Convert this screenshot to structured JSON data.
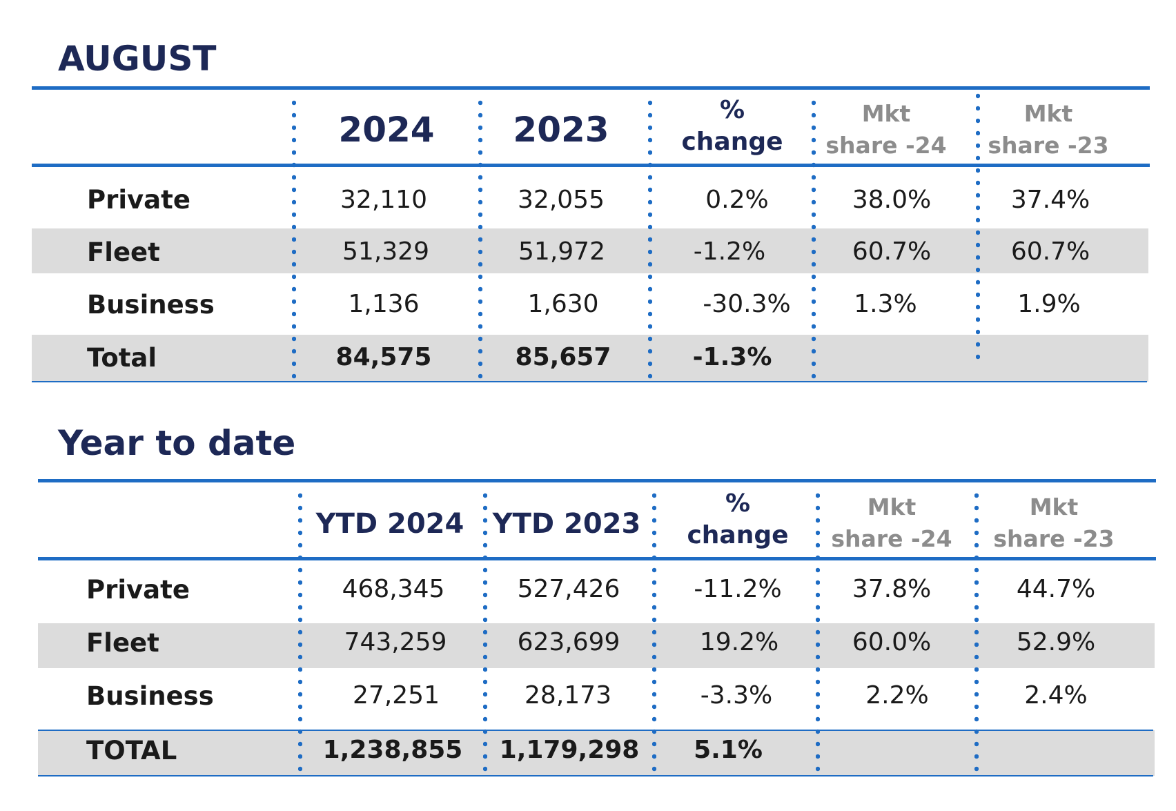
{
  "sections": {
    "august": {
      "title": "AUGUST",
      "headers": {
        "y2024": "2024",
        "y2023": "2023",
        "pct_line1": "%",
        "pct_line2": "change",
        "mkt24_line1": "Mkt",
        "mkt24_line2": "share -24",
        "mkt23_line1": "Mkt",
        "mkt23_line2": "share -23"
      },
      "rows": [
        {
          "label": "Private",
          "y2024": "32,110",
          "y2023": "32,055",
          "pct": "0.2%",
          "mkt24": "38.0%",
          "mkt23": "37.4%"
        },
        {
          "label": "Fleet",
          "y2024": "51,329",
          "y2023": "51,972",
          "pct": "-1.2%",
          "mkt24": "60.7%",
          "mkt23": "60.7%"
        },
        {
          "label": "Business",
          "y2024": "1,136",
          "y2023": "1,630",
          "pct": "-30.3%",
          "mkt24": "1.3%",
          "mkt23": "1.9%"
        },
        {
          "label": "Total",
          "y2024": "84,575",
          "y2023": "85,657",
          "pct": "-1.3%",
          "mkt24": "",
          "mkt23": ""
        }
      ]
    },
    "ytd": {
      "title": "Year to date",
      "headers": {
        "y2024": "YTD 2024",
        "y2023": "YTD 2023",
        "pct_line1": "%",
        "pct_line2": "change",
        "mkt24_line1": "Mkt",
        "mkt24_line2": "share -24",
        "mkt23_line1": "Mkt",
        "mkt23_line2": "share -23"
      },
      "rows": [
        {
          "label": "Private",
          "y2024": "468,345",
          "y2023": "527,426",
          "pct": "-11.2%",
          "mkt24": "37.8%",
          "mkt23": "44.7%"
        },
        {
          "label": "Fleet",
          "y2024": "743,259",
          "y2023": "623,699",
          "pct": "19.2%",
          "mkt24": "60.0%",
          "mkt23": "52.9%"
        },
        {
          "label": "Business",
          "y2024": "27,251",
          "y2023": "28,173",
          "pct": "-3.3%",
          "mkt24": "2.2%",
          "mkt23": "2.4%"
        },
        {
          "label": "TOTAL",
          "y2024": "1,238,855",
          "y2023": "1,179,298",
          "pct": "5.1%",
          "mkt24": "",
          "mkt23": ""
        }
      ]
    }
  }
}
